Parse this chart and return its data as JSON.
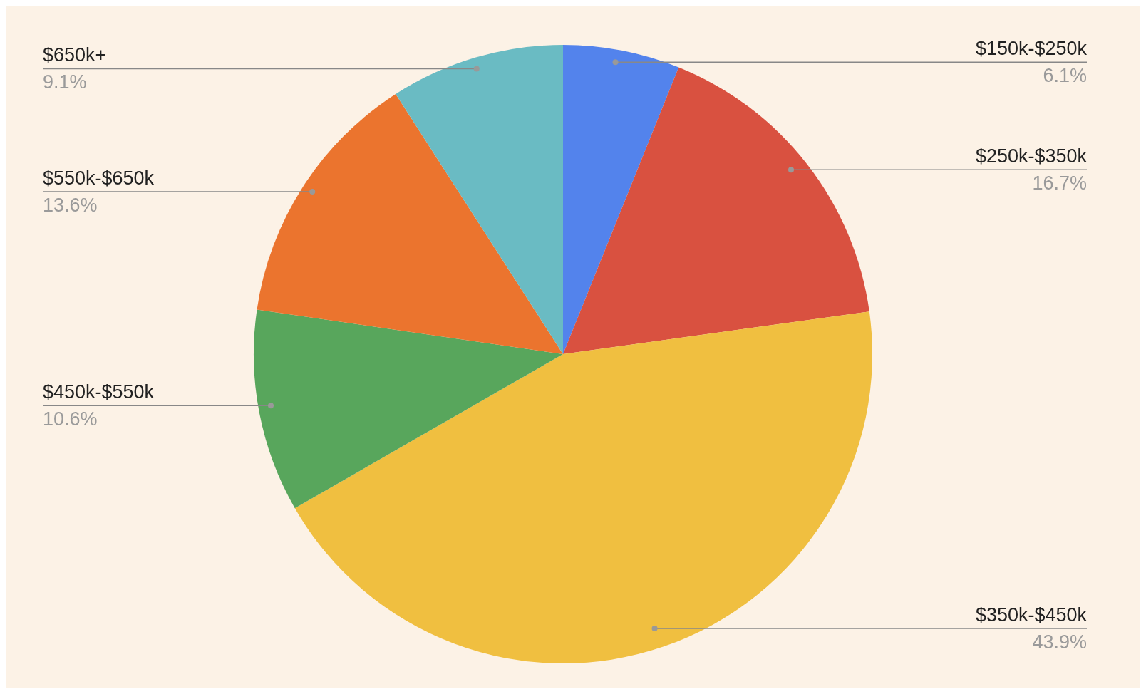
{
  "chart_data": {
    "type": "pie",
    "categories": [
      "$150k-$250k",
      "$250k-$350k",
      "$350k-$450k",
      "$450k-$550k",
      "$550k-$650k",
      "$650k+"
    ],
    "values": [
      6.1,
      16.7,
      43.9,
      10.6,
      13.6,
      9.1
    ],
    "value_labels": [
      "6.1%",
      "16.7%",
      "43.9%",
      "10.6%",
      "13.6%",
      "9.1%"
    ],
    "colors": [
      "#5383ec",
      "#d95140",
      "#f0bf40",
      "#58a65c",
      "#eb742e",
      "#6abbc3"
    ],
    "legend": false
  }
}
